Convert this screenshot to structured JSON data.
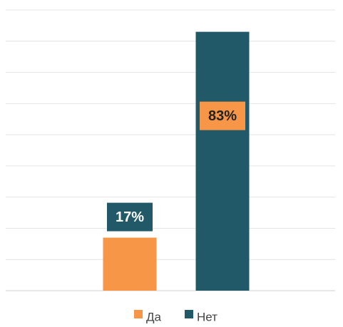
{
  "chart_data": {
    "type": "bar",
    "categories": [
      "Да",
      "Нет"
    ],
    "values": [
      17,
      83
    ],
    "value_labels": [
      "17%",
      "83%"
    ],
    "colors": [
      "#f79646",
      "#215968"
    ],
    "ylim": [
      0,
      90
    ],
    "yticks": [
      0,
      10,
      20,
      30,
      40,
      50,
      60,
      70,
      80,
      90
    ],
    "grid": true,
    "legend": "bottom"
  }
}
